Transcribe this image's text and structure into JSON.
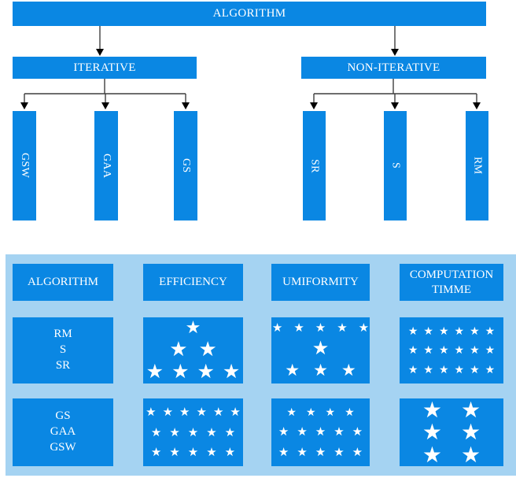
{
  "flowchart": {
    "root_label": "ALGORITHM",
    "branches": [
      {
        "label": "ITERATIVE",
        "children": [
          {
            "label": "GSW"
          },
          {
            "label": "GAA"
          },
          {
            "label": "GS"
          }
        ]
      },
      {
        "label": "NON-ITERATIVE",
        "children": [
          {
            "label": "SR"
          },
          {
            "label": "S"
          },
          {
            "label": "RM"
          }
        ]
      }
    ]
  },
  "comparison_table": {
    "headers": [
      "ALGORITHM",
      "EFFICIENCY",
      "UMIFORMITY",
      "COMPUTATION TIMME"
    ],
    "star_glyph": "★",
    "rows": [
      {
        "algorithm_lines": [
          "RM",
          "S",
          "SR"
        ],
        "cells": [
          {
            "column": "EFFICIENCY",
            "star_rows": [
              {
                "count": 1,
                "size": 22,
                "gap": 10
              },
              {
                "count": 2,
                "size": 26,
                "gap": 14
              },
              {
                "count": 4,
                "size": 25,
                "gap": 10
              }
            ]
          },
          {
            "column": "UMIFORMITY",
            "star_rows": [
              {
                "count": 5,
                "size": 15,
                "gap": 14
              },
              {
                "count": 1,
                "size": 24,
                "gap": 10
              },
              {
                "count": 3,
                "size": 21,
                "gap": 17
              }
            ]
          },
          {
            "column": "COMPUTATION TIMME",
            "star_rows": [
              {
                "count": 6,
                "size": 14,
                "gap": 7
              },
              {
                "count": 6,
                "size": 14,
                "gap": 7
              },
              {
                "count": 6,
                "size": 14,
                "gap": 7
              }
            ]
          }
        ]
      },
      {
        "algorithm_lines": [
          "GS",
          "GAA",
          "GSW"
        ],
        "cells": [
          {
            "column": "EFFICIENCY",
            "star_rows": [
              {
                "count": 6,
                "size": 15,
                "gap": 8
              },
              {
                "count": 5,
                "size": 15,
                "gap": 10
              },
              {
                "count": 5,
                "size": 15,
                "gap": 10
              }
            ]
          },
          {
            "column": "UMIFORMITY",
            "star_rows": [
              {
                "count": 4,
                "size": 14,
                "gap": 12
              },
              {
                "count": 5,
                "size": 15,
                "gap": 10
              },
              {
                "count": 5,
                "size": 15,
                "gap": 10
              }
            ]
          },
          {
            "column": "COMPUTATION TIMME",
            "star_rows": [
              {
                "count": 2,
                "size": 28,
                "gap": 24
              },
              {
                "count": 2,
                "size": 28,
                "gap": 24
              },
              {
                "count": 2,
                "size": 28,
                "gap": 24
              }
            ]
          }
        ]
      }
    ]
  },
  "colors": {
    "box_blue": "#0a87e3",
    "band_light_blue": "#a5d3f2",
    "text_white": "#ffffff",
    "connector_dark": "#3f3f3f"
  }
}
